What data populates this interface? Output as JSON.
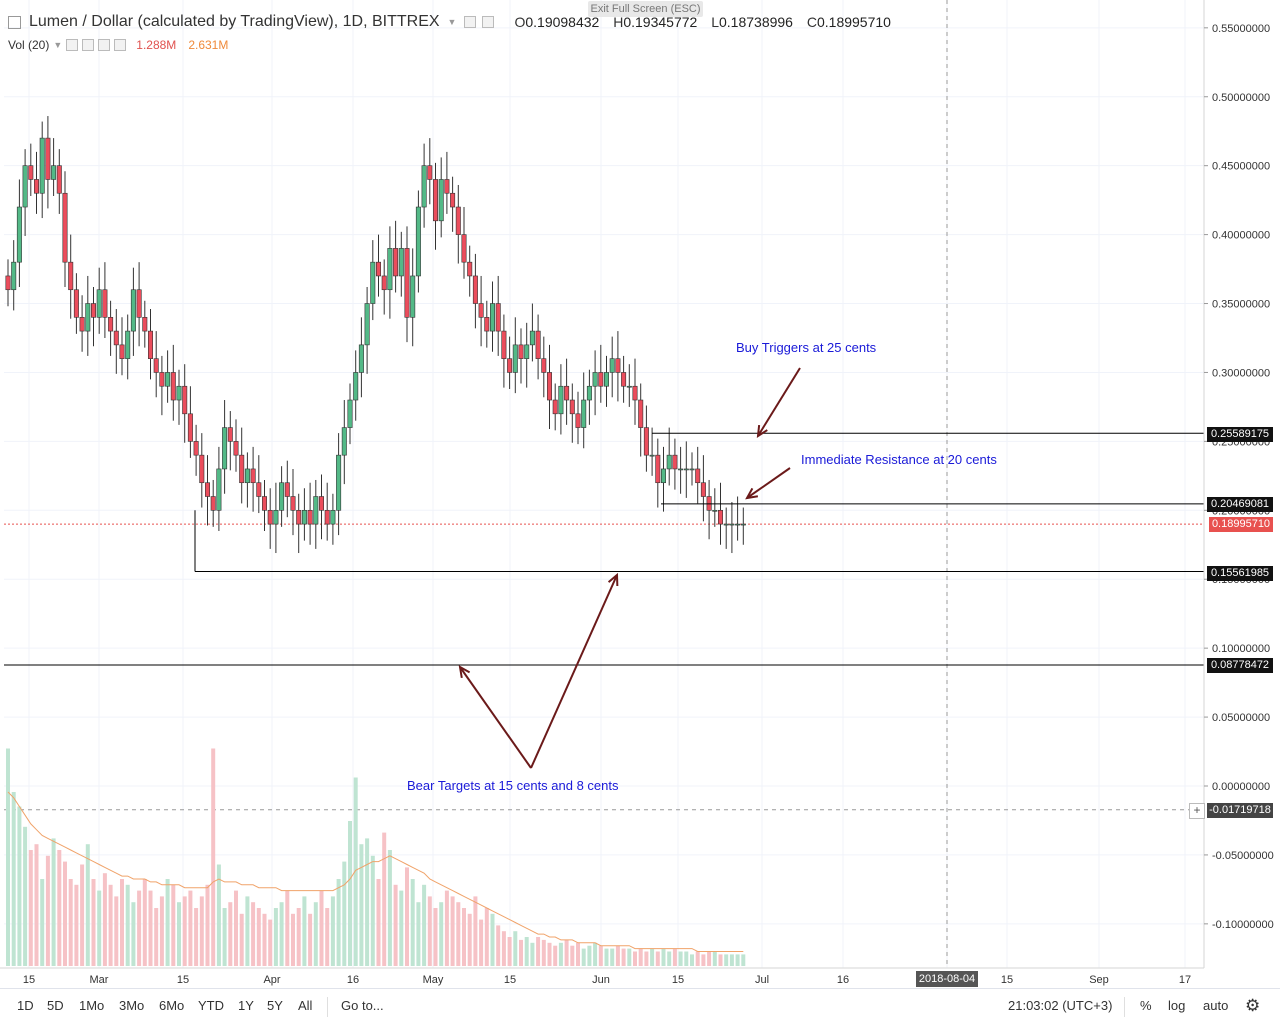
{
  "header": {
    "title": "Lumen / Dollar (calculated by TradingView), 1D, BITTREX",
    "ohlc": [
      {
        "label": "O",
        "value": "0.19098432"
      },
      {
        "label": "H",
        "value": "0.19345772"
      },
      {
        "label": "L",
        "value": "0.18738996"
      },
      {
        "label": "C",
        "value": "0.18995710"
      }
    ],
    "exit_fullscreen": "Exit Full Screen (ESC)"
  },
  "volume": {
    "label": "Vol (20)",
    "value1": "1.288M",
    "value2": "2.631M"
  },
  "price_labels": {
    "resistance_high": "0.25589175",
    "resistance_low": "0.20469081",
    "current": "0.18995710",
    "support_1": "0.15561985",
    "support_2": "0.08778472",
    "crosshair": "-0.01719718"
  },
  "annotations": {
    "buy": "Buy Triggers at 25 cents",
    "resistance": "Immediate Resistance at 20 cents",
    "bear": "Bear Targets at 15 cents and 8 cents"
  },
  "crosshair_date": "2018-08-04",
  "toolbar": {
    "timeframes": [
      "1D",
      "5D",
      "1Mo",
      "3Mo",
      "6Mo",
      "YTD",
      "1Y",
      "5Y",
      "All"
    ],
    "goto": "Go to...",
    "time": "21:03:02 (UTC+3)",
    "percent": "%",
    "log": "log",
    "auto": "auto"
  },
  "colors": {
    "up": "#53b987",
    "down": "#eb4d5c",
    "vol_up": "#bfe4d2",
    "vol_down": "#f6c2c6",
    "ma": "#f0a36a",
    "annotation": "#1a1ad8"
  },
  "chart_data": {
    "type": "candlestick",
    "symbol": "XLM/USD",
    "exchange": "BITTREX",
    "interval": "1D",
    "y_axis": {
      "ticks": [
        "0.55000000",
        "0.50000000",
        "0.45000000",
        "0.40000000",
        "0.35000000",
        "0.30000000",
        "0.25000000",
        "0.20000000",
        "0.15000000",
        "0.10000000",
        "0.05000000",
        "0.00000000",
        "-0.05000000",
        "-0.10000000"
      ],
      "ylim": [
        -0.13,
        0.56
      ]
    },
    "x_axis": {
      "ticks": [
        "15",
        "Mar",
        "15",
        "Apr",
        "16",
        "May",
        "15",
        "Jun",
        "15",
        "Jul",
        "16",
        "2018-08-04",
        "15",
        "Sep",
        "17"
      ],
      "start_date": "2018-02-09"
    },
    "horizontal_lines": [
      0.25589175,
      0.20469081,
      0.15561985,
      0.08778472
    ],
    "closes": [
      0.36,
      0.38,
      0.42,
      0.45,
      0.44,
      0.43,
      0.47,
      0.44,
      0.45,
      0.43,
      0.38,
      0.36,
      0.34,
      0.33,
      0.35,
      0.34,
      0.36,
      0.34,
      0.33,
      0.32,
      0.31,
      0.33,
      0.36,
      0.34,
      0.33,
      0.31,
      0.3,
      0.29,
      0.3,
      0.28,
      0.29,
      0.27,
      0.25,
      0.24,
      0.22,
      0.21,
      0.2,
      0.23,
      0.26,
      0.25,
      0.24,
      0.22,
      0.23,
      0.22,
      0.21,
      0.2,
      0.19,
      0.2,
      0.22,
      0.21,
      0.2,
      0.19,
      0.2,
      0.19,
      0.21,
      0.2,
      0.19,
      0.2,
      0.24,
      0.26,
      0.28,
      0.3,
      0.32,
      0.35,
      0.38,
      0.37,
      0.36,
      0.39,
      0.37,
      0.39,
      0.34,
      0.37,
      0.42,
      0.45,
      0.44,
      0.41,
      0.44,
      0.43,
      0.42,
      0.4,
      0.38,
      0.37,
      0.35,
      0.34,
      0.33,
      0.35,
      0.33,
      0.31,
      0.3,
      0.32,
      0.31,
      0.32,
      0.33,
      0.31,
      0.3,
      0.28,
      0.27,
      0.29,
      0.28,
      0.27,
      0.26,
      0.28,
      0.29,
      0.3,
      0.29,
      0.3,
      0.31,
      0.3,
      0.29,
      0.29,
      0.28,
      0.26,
      0.24,
      0.24,
      0.22,
      0.23,
      0.24,
      0.23,
      0.23,
      0.23,
      0.23,
      0.22,
      0.21,
      0.2,
      0.2,
      0.19,
      0.19,
      0.19,
      0.19,
      0.19
    ],
    "volumes": [
      75,
      60,
      55,
      48,
      40,
      42,
      30,
      38,
      44,
      40,
      36,
      30,
      28,
      35,
      42,
      30,
      26,
      32,
      28,
      24,
      30,
      28,
      22,
      26,
      30,
      26,
      20,
      24,
      30,
      28,
      22,
      24,
      26,
      20,
      24,
      28,
      75,
      35,
      20,
      22,
      26,
      18,
      24,
      22,
      20,
      18,
      16,
      20,
      22,
      26,
      18,
      20,
      24,
      18,
      22,
      26,
      20,
      24,
      30,
      36,
      50,
      65,
      42,
      44,
      38,
      30,
      46,
      40,
      28,
      26,
      34,
      30,
      22,
      28,
      24,
      20,
      22,
      26,
      24,
      22,
      20,
      18,
      24,
      16,
      20,
      18,
      14,
      12,
      10,
      12,
      9,
      10,
      8,
      10,
      9,
      8,
      7,
      8,
      9,
      7,
      8,
      6,
      7,
      8,
      7,
      6,
      6,
      7,
      6,
      6,
      5,
      6,
      5,
      6,
      5,
      6,
      5,
      6,
      5,
      5,
      4,
      5,
      4,
      5,
      5,
      4,
      4,
      4,
      4,
      4
    ],
    "volume_ma": [
      60,
      58,
      55,
      52,
      49,
      47,
      45,
      44,
      43,
      42,
      41,
      40,
      39,
      38,
      37,
      36,
      35,
      34,
      33,
      32,
      31,
      31,
      30,
      30,
      30,
      29,
      29,
      28,
      28,
      28,
      28,
      27,
      27,
      27,
      27,
      27,
      29,
      30,
      29,
      29,
      29,
      28,
      28,
      28,
      27,
      27,
      27,
      27,
      26,
      26,
      26,
      26,
      26,
      26,
      26,
      26,
      26,
      26,
      27,
      28,
      30,
      33,
      34,
      35,
      36,
      36,
      37,
      38,
      37,
      36,
      35,
      34,
      33,
      32,
      30,
      29,
      28,
      27,
      26,
      25,
      24,
      23,
      22,
      21,
      20,
      19,
      18,
      17,
      16,
      15,
      14,
      13,
      12,
      11,
      11,
      10,
      10,
      9,
      9,
      9,
      8,
      8,
      8,
      8,
      7,
      7,
      7,
      7,
      7,
      7,
      6,
      6,
      6,
      6,
      6,
      6,
      6,
      6,
      6,
      6,
      6,
      5,
      5,
      5,
      5,
      5,
      5,
      5,
      5,
      5
    ]
  }
}
